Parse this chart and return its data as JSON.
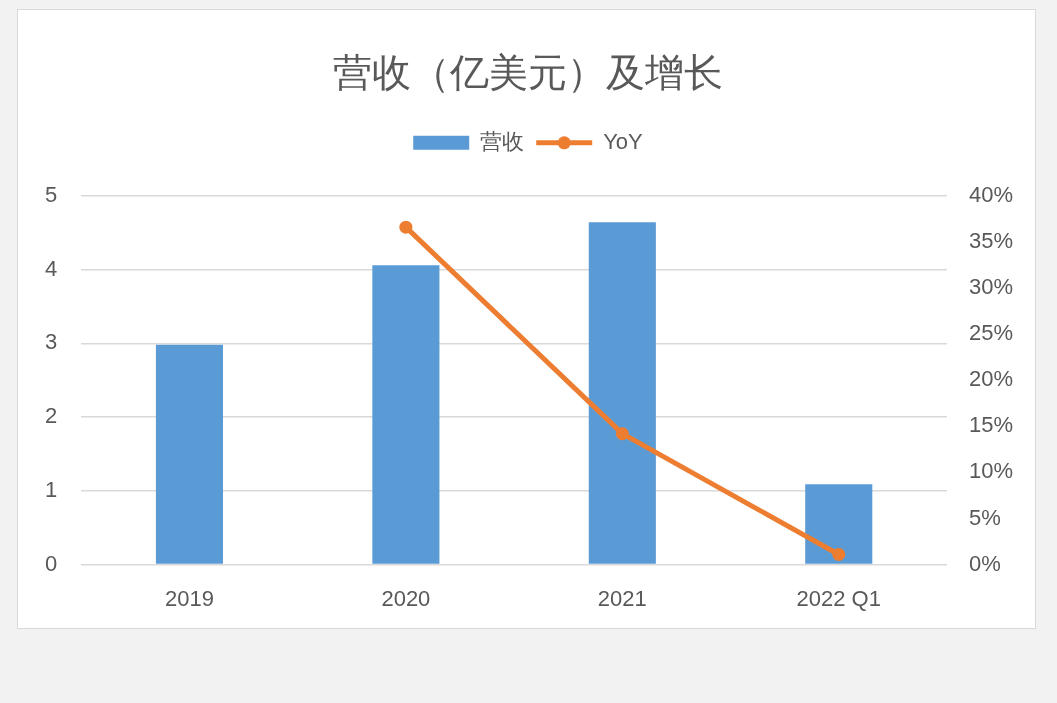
{
  "chart_data": {
    "type": "bar",
    "title": "营收（亿美元）及增长",
    "categories": [
      "2019",
      "2020",
      "2021",
      "2022 Q1"
    ],
    "series": [
      {
        "name": "营收",
        "color": "#5b9bd5",
        "values": [
          2.98,
          4.06,
          4.64,
          1.09
        ]
      },
      {
        "name": "YoY",
        "type": "line",
        "axis": "y2",
        "color": "#ed7d31",
        "values": [
          null,
          36.6,
          14.2,
          1.1
        ]
      }
    ],
    "ylim": [
      0,
      5
    ],
    "yticks": [
      0,
      1,
      2,
      3,
      4,
      5
    ],
    "y2lim": [
      0,
      40
    ],
    "y2ticks": [
      {
        "value": 0,
        "label": "0%"
      },
      {
        "value": 5,
        "label": "5%"
      },
      {
        "value": 10,
        "label": "10%"
      },
      {
        "value": 15,
        "label": "15%"
      },
      {
        "value": 20,
        "label": "20%"
      },
      {
        "value": 25,
        "label": "25%"
      },
      {
        "value": 30,
        "label": "30%"
      },
      {
        "value": 35,
        "label": "35%"
      },
      {
        "value": 40,
        "label": "40%"
      }
    ],
    "grid": "y",
    "legend": "top",
    "marker": "circle"
  }
}
